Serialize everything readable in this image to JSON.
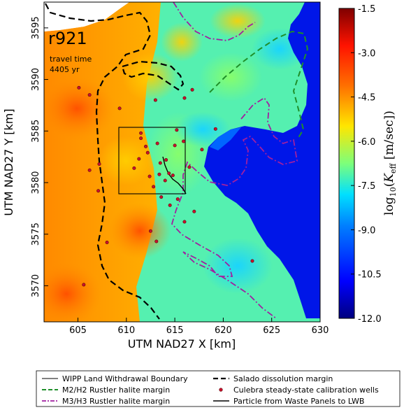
{
  "map": {
    "run_label": "r921",
    "travel_time_label": "travel time",
    "travel_time_value": "4405 yr",
    "x_axis_label": "UTM NAD27 X [km]",
    "y_axis_label": "UTM NAD27 Y [km]",
    "x_ticks": [
      "605",
      "610",
      "615",
      "620",
      "625",
      "630"
    ],
    "y_ticks": [
      "3570",
      "3575",
      "3580",
      "3585",
      "3590",
      "3595"
    ],
    "x_range": [
      601.5,
      630
    ],
    "y_range": [
      3566.5,
      3597.5
    ]
  },
  "colorbar": {
    "label": "log10(Keff [m/sec])",
    "ticks": [
      "-1.5",
      "-3.0",
      "-4.5",
      "-6.0",
      "-7.5",
      "-9.0",
      "-10.5",
      "-12.0"
    ],
    "range": [
      -12.0,
      -1.5
    ],
    "colormap": [
      "#00007f",
      "#0000ff",
      "#0080ff",
      "#00e0ff",
      "#7dff7a",
      "#ffe600",
      "#ff7000",
      "#ff1300",
      "#7f0000"
    ]
  },
  "legend": {
    "items": [
      {
        "label": "WIPP Land Withdrawal Boundary",
        "style": "solid-thin",
        "color": "#000000"
      },
      {
        "label": "Salado dissolution margin",
        "style": "dashed-thick",
        "color": "#000000"
      },
      {
        "label": "M2/H2 Rustler halite margin",
        "style": "dashed",
        "color": "#1f8f2a"
      },
      {
        "label": "Culebra steady-state calibration wells",
        "style": "dot",
        "color": "#c8102e"
      },
      {
        "label": "M3/H3 Rustler halite margin",
        "style": "dashdot",
        "color": "#a020a0"
      },
      {
        "label": "Particle from Waste Panels to LWB",
        "style": "solid",
        "color": "#000000"
      }
    ]
  },
  "wells": [
    [
      605.1,
      3589.2
    ],
    [
      607.2,
      3581.8
    ],
    [
      606.2,
      3588.5
    ],
    [
      607.1,
      3579.2
    ],
    [
      608.0,
      3574.2
    ],
    [
      609.3,
      3587.2
    ],
    [
      611.5,
      3584.8
    ],
    [
      612.2,
      3582.9
    ],
    [
      613.2,
      3583.8
    ],
    [
      613.5,
      3581.9
    ],
    [
      614.1,
      3582.2
    ],
    [
      615.0,
      3583.6
    ],
    [
      614.8,
      3580.7
    ],
    [
      614.0,
      3580.2
    ],
    [
      613.6,
      3578.6
    ],
    [
      615.3,
      3578.4
    ],
    [
      616.0,
      3576.2
    ],
    [
      617.0,
      3577.2
    ],
    [
      614.5,
      3577.8
    ],
    [
      612.5,
      3575.3
    ],
    [
      611.5,
      3584.3
    ],
    [
      612.0,
      3583.5
    ],
    [
      610.8,
      3581.4
    ],
    [
      612.4,
      3580.6
    ],
    [
      613.4,
      3580.8
    ],
    [
      615.2,
      3585.1
    ],
    [
      615.9,
      3584.0
    ],
    [
      617.8,
      3583.2
    ],
    [
      619.2,
      3585.2
    ],
    [
      613.0,
      3588.0
    ],
    [
      616.0,
      3588.2
    ],
    [
      616.8,
      3589.0
    ],
    [
      606.2,
      3581.2
    ],
    [
      605.6,
      3570.1
    ],
    [
      623.0,
      3572.4
    ],
    [
      613.1,
      3574.3
    ],
    [
      612.8,
      3579.6
    ],
    [
      616.5,
      3581.5
    ],
    [
      611.3,
      3582.3
    ],
    [
      614.4,
      3580.9
    ]
  ]
}
